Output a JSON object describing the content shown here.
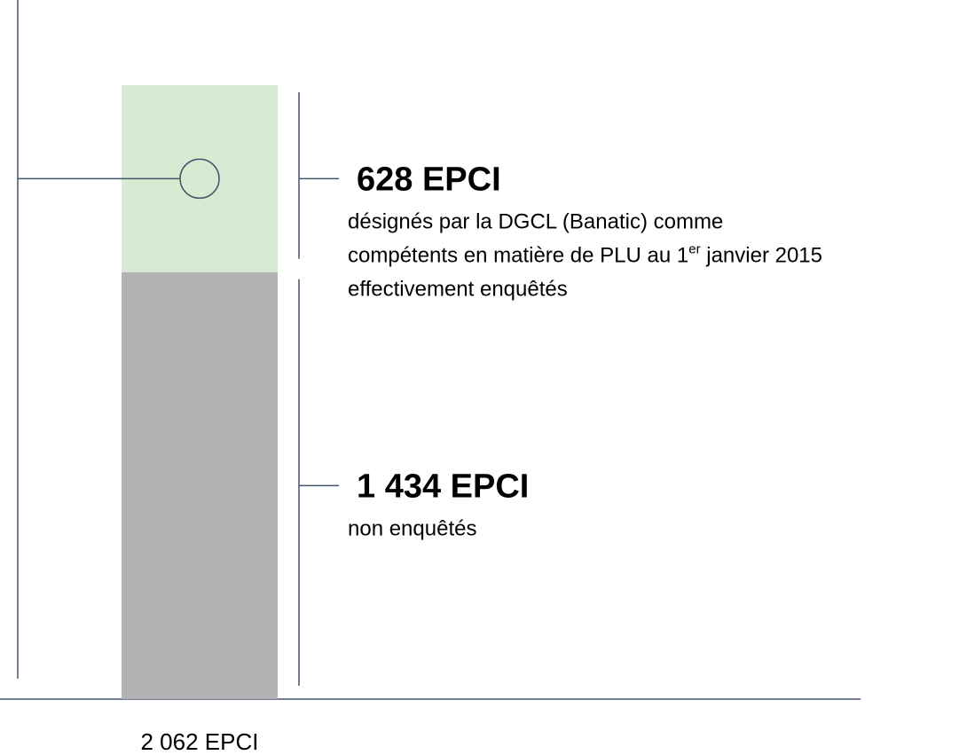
{
  "chart_data": {
    "type": "stacked_bar",
    "categories": [
      "2 062 EPCI"
    ],
    "ylim": [
      0,
      2062
    ],
    "series": [
      {
        "color": "#b3b3b3",
        "values": [
          1434
        ],
        "value_labels": [
          "1 434 EPCI"
        ],
        "description": [
          "non enquêtés"
        ]
      },
      {
        "color": "#d9ead3",
        "values": [
          628
        ],
        "value_labels": [
          "628 EPCI"
        ],
        "description": [
          "désignés par la DGCL (Banatic) comme",
          [
            "compétents en matière de PLU au 1",
            "er",
            " janvier 2015"
          ],
          "effectivement enquêtés"
        ]
      }
    ]
  }
}
